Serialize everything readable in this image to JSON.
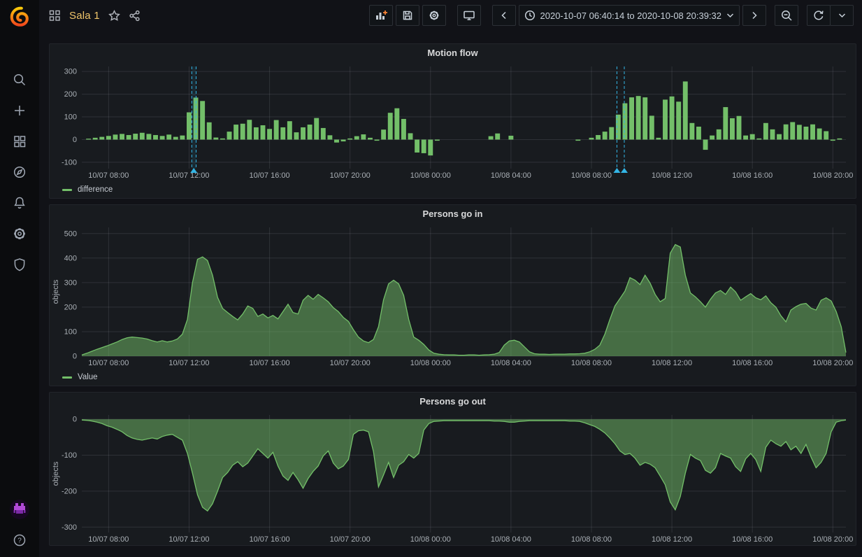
{
  "header": {
    "title": "Sala 1",
    "toolbar": {
      "time_range": "2020-10-07 06:40:14 to 2020-10-08 20:39:32",
      "icons": [
        "add-panel",
        "save-dashboard",
        "dashboard-settings",
        "cycle-view-mode",
        "time-range-back",
        "time-range-picker",
        "time-range-forward",
        "zoom-out",
        "refresh",
        "refresh-interval-dropdown"
      ]
    },
    "left_icons": [
      "dashboard-grid",
      "star",
      "share"
    ]
  },
  "sidebar": {
    "icons": [
      "grafana-logo",
      "search",
      "add",
      "dashboards",
      "explore",
      "alerting",
      "configuration",
      "server-admin",
      "user-avatar",
      "help"
    ]
  },
  "colors": {
    "series_green": "#73bf69",
    "area_fill": "rgba(115,191,105,0.5)",
    "annotation_blue": "#33b5e5",
    "grid": "rgba(204,204,220,0.13)",
    "tick_text": "#aab0b6",
    "title_amber": "#f0c56b"
  },
  "chart_data": [
    {
      "type": "bar",
      "title": "Motion flow",
      "series_name": "difference",
      "color": "#73bf69",
      "x_max": 2279,
      "bar_slot_min": 20,
      "y_min": -128,
      "y_max": 322,
      "y_ticks": [
        300,
        200,
        100,
        0,
        -100
      ],
      "x_ticks": [
        {
          "m": 80,
          "label": "10/07 08:00"
        },
        {
          "m": 320,
          "label": "10/07 12:00"
        },
        {
          "m": 560,
          "label": "10/07 16:00"
        },
        {
          "m": 800,
          "label": "10/07 20:00"
        },
        {
          "m": 1040,
          "label": "10/08 00:00"
        },
        {
          "m": 1280,
          "label": "10/08 04:00"
        },
        {
          "m": 1520,
          "label": "10/08 08:00"
        },
        {
          "m": 1760,
          "label": "10/08 12:00"
        },
        {
          "m": 2000,
          "label": "10/08 16:00"
        },
        {
          "m": 2240,
          "label": "10/08 20:00"
        }
      ],
      "bars": [
        [
          10,
          4
        ],
        [
          30,
          8
        ],
        [
          50,
          12
        ],
        [
          70,
          16
        ],
        [
          90,
          22
        ],
        [
          110,
          25
        ],
        [
          130,
          20
        ],
        [
          150,
          26
        ],
        [
          170,
          30
        ],
        [
          190,
          25
        ],
        [
          210,
          20
        ],
        [
          230,
          16
        ],
        [
          250,
          22
        ],
        [
          270,
          12
        ],
        [
          290,
          18
        ],
        [
          310,
          120
        ],
        [
          330,
          185
        ],
        [
          350,
          170
        ],
        [
          370,
          76
        ],
        [
          390,
          9
        ],
        [
          410,
          5
        ],
        [
          430,
          35
        ],
        [
          450,
          66
        ],
        [
          470,
          70
        ],
        [
          490,
          87
        ],
        [
          510,
          54
        ],
        [
          530,
          63
        ],
        [
          550,
          47
        ],
        [
          570,
          86
        ],
        [
          590,
          54
        ],
        [
          610,
          81
        ],
        [
          630,
          32
        ],
        [
          650,
          54
        ],
        [
          670,
          66
        ],
        [
          690,
          95
        ],
        [
          710,
          51
        ],
        [
          730,
          19
        ],
        [
          750,
          -13
        ],
        [
          770,
          -8
        ],
        [
          790,
          5
        ],
        [
          810,
          15
        ],
        [
          830,
          23
        ],
        [
          850,
          8
        ],
        [
          870,
          -5
        ],
        [
          890,
          44
        ],
        [
          910,
          118
        ],
        [
          930,
          138
        ],
        [
          950,
          91
        ],
        [
          970,
          28
        ],
        [
          990,
          -57
        ],
        [
          1010,
          -60
        ],
        [
          1030,
          -70
        ],
        [
          1050,
          -5
        ],
        [
          1210,
          15
        ],
        [
          1230,
          27
        ],
        [
          1270,
          17
        ],
        [
          1470,
          -5
        ],
        [
          1510,
          8
        ],
        [
          1530,
          20
        ],
        [
          1550,
          35
        ],
        [
          1570,
          55
        ],
        [
          1590,
          110
        ],
        [
          1610,
          160
        ],
        [
          1630,
          186
        ],
        [
          1650,
          192
        ],
        [
          1670,
          186
        ],
        [
          1690,
          105
        ],
        [
          1710,
          8
        ],
        [
          1730,
          176
        ],
        [
          1750,
          190
        ],
        [
          1770,
          167
        ],
        [
          1790,
          256
        ],
        [
          1810,
          73
        ],
        [
          1830,
          57
        ],
        [
          1850,
          -45
        ],
        [
          1870,
          18
        ],
        [
          1890,
          45
        ],
        [
          1910,
          143
        ],
        [
          1930,
          94
        ],
        [
          1950,
          104
        ],
        [
          1970,
          18
        ],
        [
          1990,
          24
        ],
        [
          2010,
          5
        ],
        [
          2030,
          73
        ],
        [
          2050,
          45
        ],
        [
          2070,
          24
        ],
        [
          2090,
          67
        ],
        [
          2110,
          77
        ],
        [
          2130,
          65
        ],
        [
          2150,
          57
        ],
        [
          2170,
          67
        ],
        [
          2190,
          49
        ],
        [
          2210,
          37
        ],
        [
          2230,
          -5
        ],
        [
          2250,
          5
        ]
      ],
      "annotations": {
        "regions": [
          [
            328,
            341
          ]
        ],
        "lines": [
          328,
          341,
          1596,
          1618
        ],
        "markers": [
          334,
          1596,
          1618
        ],
        "color": "#33b5e5"
      },
      "legend_visible": true
    },
    {
      "type": "area",
      "title": "Persons go in",
      "series_name": "Value",
      "ylabel": "objects",
      "color": "#73bf69",
      "x_max": 2279,
      "step_min": 15,
      "y_min": 0,
      "y_max": 525,
      "y_ticks": [
        500,
        400,
        300,
        200,
        100,
        0
      ],
      "x_ticks": [
        {
          "m": 80,
          "label": "10/07 08:00"
        },
        {
          "m": 320,
          "label": "10/07 12:00"
        },
        {
          "m": 560,
          "label": "10/07 16:00"
        },
        {
          "m": 800,
          "label": "10/07 20:00"
        },
        {
          "m": 1040,
          "label": "10/08 00:00"
        },
        {
          "m": 1280,
          "label": "10/08 04:00"
        },
        {
          "m": 1520,
          "label": "10/08 08:00"
        },
        {
          "m": 1760,
          "label": "10/08 12:00"
        },
        {
          "m": 2000,
          "label": "10/08 16:00"
        },
        {
          "m": 2240,
          "label": "10/08 20:00"
        }
      ],
      "values": [
        5,
        12,
        20,
        28,
        35,
        42,
        50,
        58,
        68,
        75,
        78,
        76,
        74,
        70,
        63,
        58,
        63,
        58,
        62,
        70,
        90,
        150,
        300,
        395,
        405,
        390,
        330,
        240,
        195,
        178,
        162,
        148,
        172,
        205,
        195,
        162,
        172,
        156,
        166,
        152,
        182,
        212,
        178,
        172,
        228,
        248,
        232,
        252,
        238,
        222,
        198,
        182,
        158,
        142,
        108,
        78,
        62,
        55,
        68,
        120,
        230,
        295,
        310,
        295,
        248,
        150,
        78,
        65,
        48,
        25,
        12,
        8,
        6,
        5,
        5,
        4,
        4,
        5,
        5,
        4,
        5,
        6,
        8,
        15,
        45,
        62,
        65,
        58,
        38,
        18,
        10,
        8,
        8,
        7,
        8,
        8,
        8,
        9,
        9,
        10,
        12,
        18,
        28,
        45,
        90,
        150,
        205,
        235,
        265,
        320,
        310,
        292,
        330,
        298,
        252,
        222,
        235,
        420,
        455,
        445,
        330,
        258,
        242,
        222,
        200,
        232,
        258,
        268,
        252,
        282,
        262,
        228,
        242,
        255,
        238,
        230,
        246,
        218,
        200,
        165,
        140,
        188,
        202,
        212,
        215,
        196,
        188,
        228,
        238,
        225,
        182,
        120,
        15
      ],
      "legend_visible": true
    },
    {
      "type": "area",
      "title": "Persons go out",
      "series_name": "Value",
      "ylabel": "objects",
      "color": "#73bf69",
      "x_max": 2279,
      "step_min": 15,
      "y_min": -315,
      "y_max": 12,
      "y_ticks": [
        0,
        -100,
        -200,
        -300
      ],
      "x_ticks": [
        {
          "m": 80,
          "label": "10/07 08:00"
        },
        {
          "m": 320,
          "label": "10/07 12:00"
        },
        {
          "m": 560,
          "label": "10/07 16:00"
        },
        {
          "m": 800,
          "label": "10/07 20:00"
        },
        {
          "m": 1040,
          "label": "10/08 00:00"
        },
        {
          "m": 1280,
          "label": "10/08 04:00"
        },
        {
          "m": 1520,
          "label": "10/08 08:00"
        },
        {
          "m": 1760,
          "label": "10/08 12:00"
        },
        {
          "m": 2000,
          "label": "10/08 16:00"
        },
        {
          "m": 2240,
          "label": "10/08 20:00"
        }
      ],
      "values": [
        -2,
        -3,
        -5,
        -8,
        -12,
        -18,
        -22,
        -28,
        -35,
        -45,
        -52,
        -56,
        -58,
        -55,
        -52,
        -55,
        -48,
        -44,
        -42,
        -50,
        -58,
        -95,
        -150,
        -210,
        -245,
        -255,
        -235,
        -200,
        -162,
        -148,
        -128,
        -118,
        -132,
        -122,
        -102,
        -82,
        -95,
        -108,
        -92,
        -130,
        -158,
        -170,
        -148,
        -168,
        -192,
        -165,
        -145,
        -130,
        -102,
        -88,
        -122,
        -138,
        -130,
        -112,
        -42,
        -32,
        -30,
        -35,
        -90,
        -188,
        -155,
        -120,
        -162,
        -128,
        -118,
        -98,
        -108,
        -95,
        -30,
        -12,
        -6,
        -5,
        -4,
        -4,
        -4,
        -4,
        -4,
        -4,
        -4,
        -4,
        -4,
        -4,
        -5,
        -5,
        -6,
        -8,
        -8,
        -6,
        -5,
        -4,
        -4,
        -4,
        -4,
        -4,
        -4,
        -4,
        -4,
        -5,
        -5,
        -6,
        -10,
        -15,
        -20,
        -28,
        -38,
        -52,
        -68,
        -88,
        -98,
        -95,
        -108,
        -128,
        -120,
        -125,
        -135,
        -158,
        -182,
        -230,
        -252,
        -215,
        -150,
        -98,
        -108,
        -115,
        -142,
        -150,
        -135,
        -95,
        -102,
        -108,
        -132,
        -145,
        -110,
        -95,
        -112,
        -145,
        -78,
        -58,
        -68,
        -75,
        -62,
        -85,
        -75,
        -95,
        -70,
        -105,
        -135,
        -120,
        -95,
        -35,
        -8,
        -4,
        -2
      ],
      "legend_visible": false
    }
  ]
}
